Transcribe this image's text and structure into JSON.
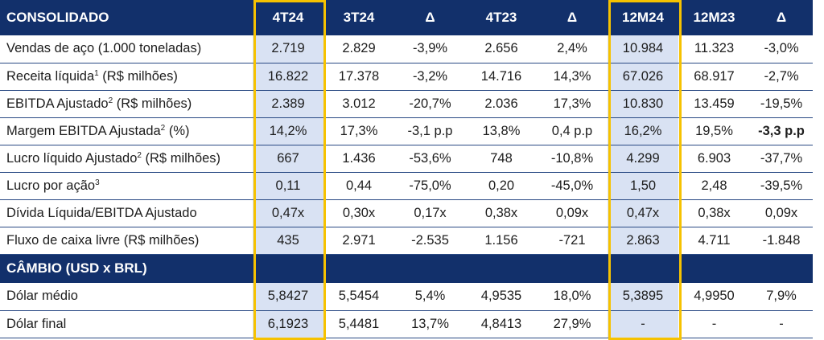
{
  "header": {
    "label": "CONSOLIDADO",
    "columns": [
      "4T24",
      "3T24",
      "Δ",
      "4T23",
      "Δ",
      "12M24",
      "12M23",
      "Δ"
    ]
  },
  "rows": [
    {
      "label": "Vendas de aço (1.000 toneladas)",
      "sup": "",
      "unit": "",
      "values": [
        "2.719",
        "2.829",
        "-3,9%",
        "2.656",
        "2,4%",
        "10.984",
        "11.323",
        "-3,0%"
      ]
    },
    {
      "label": "Receita líquida",
      "sup": "1",
      "unit": " (R$ milhões)",
      "values": [
        "16.822",
        "17.378",
        "-3,2%",
        "14.716",
        "14,3%",
        "67.026",
        "68.917",
        "-2,7%"
      ]
    },
    {
      "label": "EBITDA Ajustado",
      "sup": "2",
      "unit": " (R$ milhões)",
      "values": [
        "2.389",
        "3.012",
        "-20,7%",
        "2.036",
        "17,3%",
        "10.830",
        "13.459",
        "-19,5%"
      ]
    },
    {
      "label": "Margem EBITDA Ajustada",
      "sup": "2",
      "unit": " (%)",
      "values": [
        "14,2%",
        "17,3%",
        "-3,1 p.p",
        "13,8%",
        "0,4 p.p",
        "16,2%",
        "19,5%",
        "-3,3 p.p"
      ]
    },
    {
      "label": "Lucro líquido Ajustado",
      "sup": "2",
      "unit": " (R$ milhões)",
      "values": [
        "667",
        "1.436",
        "-53,6%",
        "748",
        "-10,8%",
        "4.299",
        "6.903",
        "-37,7%"
      ]
    },
    {
      "label": "Lucro por ação",
      "sup": "3",
      "unit": "",
      "values": [
        "0,11",
        "0,44",
        "-75,0%",
        "0,20",
        "-45,0%",
        "1,50",
        "2,48",
        "-39,5%"
      ]
    },
    {
      "label": "Dívida Líquida/EBITDA Ajustado",
      "sup": "",
      "unit": "",
      "values": [
        "0,47x",
        "0,30x",
        "0,17x",
        "0,38x",
        "0,09x",
        "0,47x",
        "0,38x",
        "0,09x"
      ]
    },
    {
      "label": "Fluxo de caixa livre (R$ milhões)",
      "sup": "",
      "unit": "",
      "values": [
        "435",
        "2.971",
        "-2.535",
        "1.156",
        "-721",
        "2.863",
        "4.711",
        "-1.848"
      ]
    }
  ],
  "section": {
    "label": "CÂMBIO (USD x BRL)"
  },
  "fx_rows": [
    {
      "label": "Dólar médio",
      "values": [
        "5,8427",
        "5,5454",
        "5,4%",
        "4,9535",
        "18,0%",
        "5,3895",
        "4,9950",
        "7,9%"
      ]
    },
    {
      "label": "Dólar final",
      "values": [
        "6,1923",
        "5,4481",
        "13,7%",
        "4,8413",
        "27,9%",
        "-",
        "-",
        "-"
      ]
    }
  ]
}
